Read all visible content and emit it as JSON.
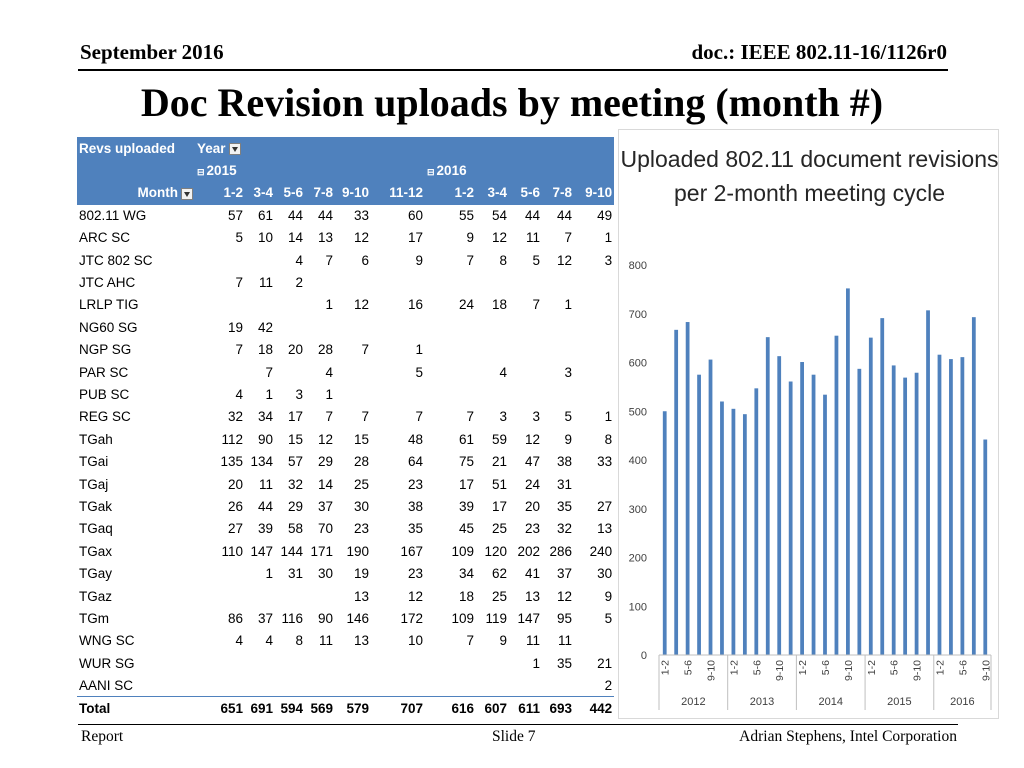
{
  "header": {
    "date": "September 2016",
    "doc_id": "doc.: IEEE 802.11-16/1126r0"
  },
  "slide_title": "Doc Revision uploads by meeting (month #)",
  "pivot": {
    "corner_label": "Revs uploaded",
    "year_label": "Year",
    "row_label": "Month",
    "years": [
      {
        "label": "2015",
        "collapse_icon": "collapse-icon"
      },
      {
        "label": "2016",
        "collapse_icon": "collapse-icon"
      }
    ],
    "months": [
      "1-2",
      "3-4",
      "5-6",
      "7-8",
      "9-10",
      "11-12",
      "1-2",
      "3-4",
      "5-6",
      "7-8",
      "9-10"
    ],
    "rows": [
      {
        "name": "802.11 WG",
        "values": [
          "57",
          "61",
          "44",
          "44",
          "33",
          "60",
          "55",
          "54",
          "44",
          "44",
          "49"
        ]
      },
      {
        "name": "ARC SC",
        "values": [
          "5",
          "10",
          "14",
          "13",
          "12",
          "17",
          "9",
          "12",
          "11",
          "7",
          "1"
        ]
      },
      {
        "name": "JTC 802 SC",
        "values": [
          "",
          "",
          "4",
          "7",
          "6",
          "9",
          "7",
          "8",
          "5",
          "12",
          "3"
        ]
      },
      {
        "name": "JTC AHC",
        "values": [
          "7",
          "11",
          "2",
          "",
          "",
          "",
          "",
          "",
          "",
          "",
          ""
        ]
      },
      {
        "name": "LRLP TIG",
        "values": [
          "",
          "",
          "",
          "1",
          "12",
          "16",
          "24",
          "18",
          "7",
          "1",
          ""
        ]
      },
      {
        "name": "NG60 SG",
        "values": [
          "19",
          "42",
          "",
          "",
          "",
          "",
          "",
          "",
          "",
          "",
          ""
        ]
      },
      {
        "name": "NGP SG",
        "values": [
          "7",
          "18",
          "20",
          "28",
          "7",
          "1",
          "",
          "",
          "",
          "",
          ""
        ]
      },
      {
        "name": "PAR SC",
        "values": [
          "",
          "7",
          "",
          "4",
          "",
          "5",
          "",
          "4",
          "",
          "3",
          ""
        ]
      },
      {
        "name": "PUB SC",
        "values": [
          "4",
          "1",
          "3",
          "1",
          "",
          "",
          "",
          "",
          "",
          "",
          ""
        ]
      },
      {
        "name": "REG SC",
        "values": [
          "32",
          "34",
          "17",
          "7",
          "7",
          "7",
          "7",
          "3",
          "3",
          "5",
          "1"
        ]
      },
      {
        "name": "TGah",
        "values": [
          "112",
          "90",
          "15",
          "12",
          "15",
          "48",
          "61",
          "59",
          "12",
          "9",
          "8"
        ]
      },
      {
        "name": "TGai",
        "values": [
          "135",
          "134",
          "57",
          "29",
          "28",
          "64",
          "75",
          "21",
          "47",
          "38",
          "33"
        ]
      },
      {
        "name": "TGaj",
        "values": [
          "20",
          "11",
          "32",
          "14",
          "25",
          "23",
          "17",
          "51",
          "24",
          "31",
          ""
        ]
      },
      {
        "name": "TGak",
        "values": [
          "26",
          "44",
          "29",
          "37",
          "30",
          "38",
          "39",
          "17",
          "20",
          "35",
          "27"
        ]
      },
      {
        "name": "TGaq",
        "values": [
          "27",
          "39",
          "58",
          "70",
          "23",
          "35",
          "45",
          "25",
          "23",
          "32",
          "13"
        ]
      },
      {
        "name": "TGax",
        "values": [
          "110",
          "147",
          "144",
          "171",
          "190",
          "167",
          "109",
          "120",
          "202",
          "286",
          "240"
        ]
      },
      {
        "name": "TGay",
        "values": [
          "",
          "1",
          "31",
          "30",
          "19",
          "23",
          "34",
          "62",
          "41",
          "37",
          "30"
        ]
      },
      {
        "name": "TGaz",
        "values": [
          "",
          "",
          "",
          "",
          "13",
          "12",
          "18",
          "25",
          "13",
          "12",
          "9"
        ]
      },
      {
        "name": "TGm",
        "values": [
          "86",
          "37",
          "116",
          "90",
          "146",
          "172",
          "109",
          "119",
          "147",
          "95",
          "5"
        ]
      },
      {
        "name": "WNG SC",
        "values": [
          "4",
          "4",
          "8",
          "11",
          "13",
          "10",
          "7",
          "9",
          "11",
          "11",
          ""
        ]
      },
      {
        "name": "WUR SG",
        "values": [
          "",
          "",
          "",
          "",
          "",
          "",
          "",
          "",
          "1",
          "35",
          "21"
        ]
      },
      {
        "name": "AANI SC",
        "values": [
          "",
          "",
          "",
          "",
          "",
          "",
          "",
          "",
          "",
          "",
          "2"
        ]
      }
    ],
    "total": {
      "name": "Total",
      "values": [
        "651",
        "691",
        "594",
        "569",
        "579",
        "707",
        "616",
        "607",
        "611",
        "693",
        "442"
      ]
    }
  },
  "chart_data": {
    "type": "bar",
    "title": "Uploaded 802.11 document revisions per 2-month meeting cycle",
    "ylim": [
      0,
      800
    ],
    "yticks": [
      0,
      100,
      200,
      300,
      400,
      500,
      600,
      700,
      800
    ],
    "grid": false,
    "bar_color": "#4f81bd",
    "groups": [
      "2012",
      "2013",
      "2014",
      "2015",
      "2016"
    ],
    "categories": [
      "1-2",
      "3-4",
      "5-6",
      "7-8",
      "9-10",
      "11-12",
      "1-2",
      "3-4",
      "5-6",
      "7-8",
      "9-10",
      "11-12",
      "1-2",
      "3-4",
      "5-6",
      "7-8",
      "9-10",
      "11-12",
      "1-2",
      "3-4",
      "5-6",
      "7-8",
      "9-10",
      "11-12",
      "1-2",
      "3-4",
      "5-6",
      "7-8",
      "9-10"
    ],
    "visible_tick_labels": [
      "1-2",
      "5-6",
      "9-10",
      "1-2",
      "5-6",
      "9-10",
      "1-2",
      "5-6",
      "9-10",
      "1-2",
      "5-6",
      "9-10",
      "1-2",
      "5-6",
      "9-10"
    ],
    "values": [
      500,
      667,
      683,
      575,
      606,
      520,
      505,
      494,
      547,
      652,
      613,
      561,
      601,
      575,
      534,
      655,
      752,
      587,
      651,
      691,
      594,
      569,
      579,
      707,
      616,
      607,
      611,
      693,
      442
    ]
  },
  "footer": {
    "left": "Report",
    "center": "Slide 7",
    "right": "Adrian Stephens, Intel Corporation"
  }
}
